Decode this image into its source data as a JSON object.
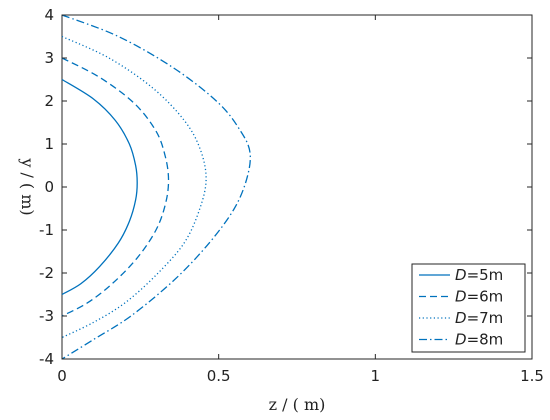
{
  "chart_data": {
    "type": "line",
    "xlabel": "z / ( m)",
    "ylabel": "y / ( m)",
    "xlim": [
      0,
      1.5
    ],
    "ylim": [
      -4,
      4
    ],
    "xticks": [
      "0",
      "0.5",
      "1",
      "1.5"
    ],
    "yticks": [
      "4",
      "3",
      "2",
      "1",
      "0",
      "-1",
      "-2",
      "-3",
      "-4"
    ],
    "grid": false,
    "legend_position": "bottom-right",
    "series": [
      {
        "name": "D=5m",
        "legend_var": "D",
        "legend_rest": "=5m",
        "style": "solid",
        "color": "#0072bd",
        "points": [
          {
            "z": 0.0,
            "y": 2.5
          },
          {
            "z": 0.1,
            "y": 2.05
          },
          {
            "z": 0.17,
            "y": 1.55
          },
          {
            "z": 0.215,
            "y": 1.0
          },
          {
            "z": 0.235,
            "y": 0.5
          },
          {
            "z": 0.24,
            "y": 0.1
          },
          {
            "z": 0.235,
            "y": -0.3
          },
          {
            "z": 0.215,
            "y": -0.8
          },
          {
            "z": 0.18,
            "y": -1.3
          },
          {
            "z": 0.12,
            "y": -1.85
          },
          {
            "z": 0.06,
            "y": -2.25
          },
          {
            "z": 0.0,
            "y": -2.5
          }
        ]
      },
      {
        "name": "D=6m",
        "legend_var": "D",
        "legend_rest": "=6m",
        "style": "dashed",
        "color": "#0072bd",
        "points": [
          {
            "z": 0.0,
            "y": 3.0
          },
          {
            "z": 0.12,
            "y": 2.55
          },
          {
            "z": 0.23,
            "y": 1.95
          },
          {
            "z": 0.3,
            "y": 1.3
          },
          {
            "z": 0.33,
            "y": 0.7
          },
          {
            "z": 0.34,
            "y": 0.15
          },
          {
            "z": 0.33,
            "y": -0.4
          },
          {
            "z": 0.3,
            "y": -1.0
          },
          {
            "z": 0.24,
            "y": -1.65
          },
          {
            "z": 0.16,
            "y": -2.25
          },
          {
            "z": 0.08,
            "y": -2.7
          },
          {
            "z": 0.0,
            "y": -3.0
          }
        ]
      },
      {
        "name": "D=7m",
        "legend_var": "D",
        "legend_rest": "=7m",
        "style": "dotted",
        "color": "#0072bd",
        "points": [
          {
            "z": 0.0,
            "y": 3.5
          },
          {
            "z": 0.15,
            "y": 3.0
          },
          {
            "z": 0.29,
            "y": 2.3
          },
          {
            "z": 0.39,
            "y": 1.55
          },
          {
            "z": 0.44,
            "y": 0.9
          },
          {
            "z": 0.46,
            "y": 0.2
          },
          {
            "z": 0.44,
            "y": -0.5
          },
          {
            "z": 0.39,
            "y": -1.3
          },
          {
            "z": 0.3,
            "y": -2.05
          },
          {
            "z": 0.2,
            "y": -2.7
          },
          {
            "z": 0.1,
            "y": -3.15
          },
          {
            "z": 0.0,
            "y": -3.5
          }
        ]
      },
      {
        "name": "D=8m",
        "legend_var": "D",
        "legend_rest": "=8m",
        "style": "dashdot",
        "color": "#0072bd",
        "points": [
          {
            "z": 0.0,
            "y": 4.0
          },
          {
            "z": 0.18,
            "y": 3.5
          },
          {
            "z": 0.36,
            "y": 2.75
          },
          {
            "z": 0.5,
            "y": 1.95
          },
          {
            "z": 0.57,
            "y": 1.3
          },
          {
            "z": 0.6,
            "y": 0.8
          },
          {
            "z": 0.59,
            "y": 0.2
          },
          {
            "z": 0.55,
            "y": -0.5
          },
          {
            "z": 0.47,
            "y": -1.3
          },
          {
            "z": 0.36,
            "y": -2.15
          },
          {
            "z": 0.22,
            "y": -3.0
          },
          {
            "z": 0.1,
            "y": -3.55
          },
          {
            "z": 0.0,
            "y": -4.0
          }
        ]
      }
    ]
  }
}
